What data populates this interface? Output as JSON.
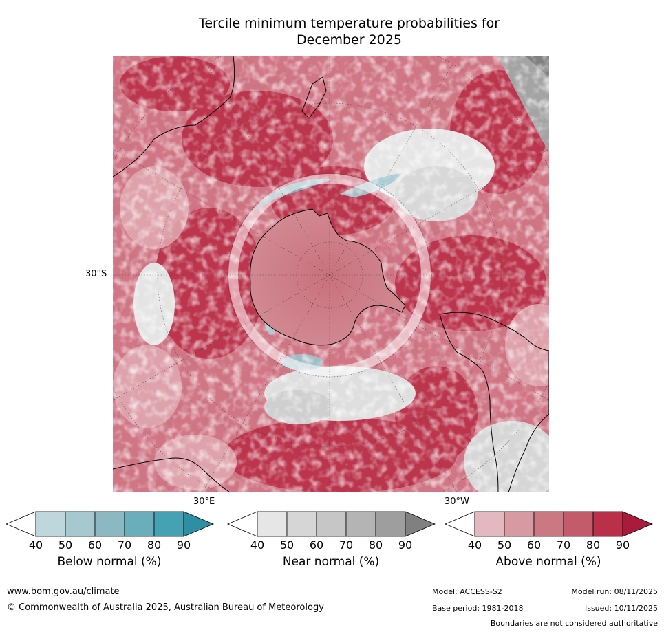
{
  "title": {
    "line1": "Tercile minimum temperature probabilities for",
    "line2": "December 2025"
  },
  "map": {
    "lat_label": "30°S",
    "lon_label_east": "30°E",
    "lon_label_west": "30°W"
  },
  "colorbars": [
    {
      "name": "below",
      "label": "Below normal (%)",
      "ticks": [
        "40",
        "50",
        "60",
        "70",
        "80",
        "90"
      ],
      "colors": [
        "#ffffff",
        "#bdd7dd",
        "#a6c8cf",
        "#8bb8c3",
        "#6aaebc",
        "#45a2b3",
        "#2e8fa3"
      ]
    },
    {
      "name": "near",
      "label": "Near normal (%)",
      "ticks": [
        "40",
        "50",
        "60",
        "70",
        "80",
        "90"
      ],
      "colors": [
        "#ffffff",
        "#e6e6e6",
        "#d6d6d6",
        "#c6c6c6",
        "#b4b4b4",
        "#9e9e9e",
        "#808080"
      ]
    },
    {
      "name": "above",
      "label": "Above normal (%)",
      "ticks": [
        "40",
        "50",
        "60",
        "70",
        "80",
        "90"
      ],
      "colors": [
        "#ffffff",
        "#e3b9bf",
        "#d79aa3",
        "#cc7883",
        "#c35b6b",
        "#b93048",
        "#a81b3a"
      ]
    }
  ],
  "footer": {
    "url": "www.bom.gov.au/climate",
    "copyright": "© Commonwealth of Australia 2025, Australian Bureau of Meteorology",
    "model": "Model: ACCESS-S2",
    "model_run": "Model run: 08/11/2025",
    "base_period": "Base period: 1981-2018",
    "issued": "Issued: 10/11/2025",
    "disclaimer": "Boundaries are not considered authoritative"
  }
}
